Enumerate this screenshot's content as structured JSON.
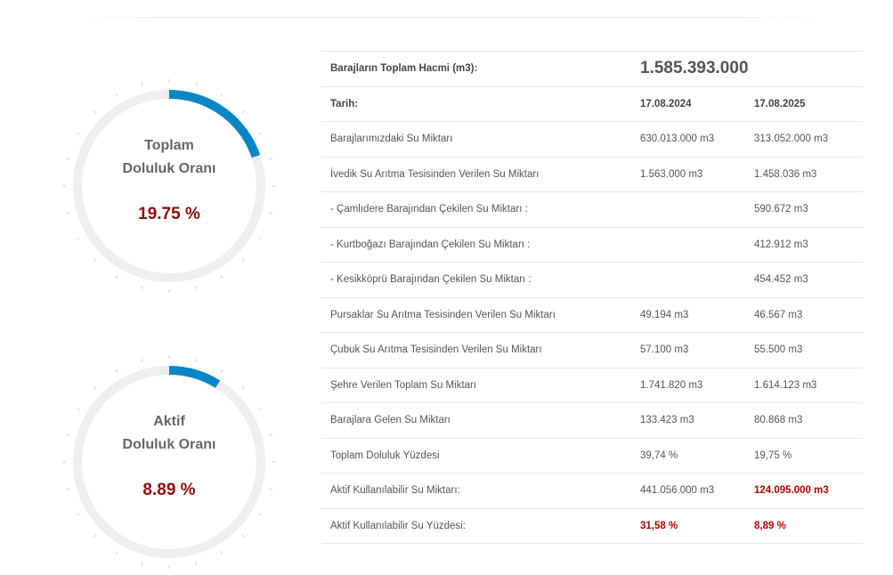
{
  "gauges": [
    {
      "title_line1": "Toplam",
      "title_line2": "Doluluk Oranı",
      "value_text": "19.75 %",
      "fraction": 0.1975
    },
    {
      "title_line1": "Aktif",
      "title_line2": "Doluluk Oranı",
      "value_text": "8.89 %",
      "fraction": 0.0889
    }
  ],
  "colors": {
    "gauge_fill": "#0a86c8",
    "gauge_track": "#eeeeee",
    "value_text": "#8b0d0d",
    "highlight_red": "#b30000"
  },
  "table": {
    "total_volume_label": "Barajların Toplam Hacmi (m3):",
    "total_volume_value": "1.585.393.000",
    "date_label": "Tarih:",
    "date_1": "17.08.2024",
    "date_2": "17.08.2025",
    "rows": [
      {
        "label": "Barajlarımızdaki Su Miktarı",
        "v1": "630.013.000 m3",
        "v2": "313.052.000 m3"
      },
      {
        "label": "İvedik Su Arıtma Tesisinden Verilen Su Miktarı",
        "v1": "1.563.000 m3",
        "v2": "1.458.036 m3"
      },
      {
        "label": "- Çamlıdere Barajından Çekilen Su Miktarı :",
        "v1": "",
        "v2": "590.672 m3"
      },
      {
        "label": "- Kurtboğazı Barajından Çekilen Su Miktarı :",
        "v1": "",
        "v2": "412.912 m3"
      },
      {
        "label": "- Kesikköprü Barajından Çekilen Su Miktarı :",
        "v1": "",
        "v2": "454.452 m3"
      },
      {
        "label": "Pursaklar Su Arıtma Tesisinden Verilen Su Miktarı",
        "v1": "49.194 m3",
        "v2": "46.567 m3"
      },
      {
        "label": "Çubuk Su Arıtma Tesisinden Verilen Su Miktarı",
        "v1": "57.100 m3",
        "v2": "55.500 m3"
      },
      {
        "label": "Şehre Verilen Toplam Su Miktarı",
        "v1": "1.741.820 m3",
        "v2": "1.614.123 m3"
      },
      {
        "label": "Barajlara Gelen Su Miktarı",
        "v1": "133.423 m3",
        "v2": "80.868 m3"
      },
      {
        "label": "Toplam Doluluk Yüzdesi",
        "v1": "39,74 %",
        "v2": "19,75 %"
      },
      {
        "label": "Aktif Kullanılabilir Su Miktarı:",
        "v1": "441.056.000 m3",
        "v2": "124.095.000 m3"
      },
      {
        "label": "Aktif Kullanılabilir Su Yüzdesi:",
        "v1": "31,58 %",
        "v2": "8,89 %"
      }
    ]
  }
}
